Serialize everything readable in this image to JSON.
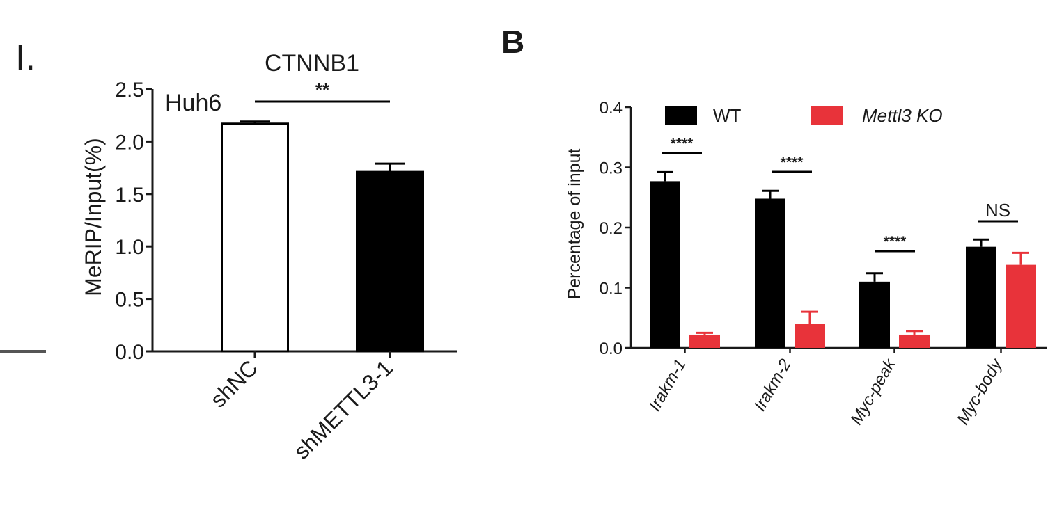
{
  "panel_left": {
    "panel_letter": "I.",
    "cell_line_label": "Huh6",
    "significance": "**",
    "error_bars": [
      0.02,
      0.08
    ]
  },
  "panel_right": {
    "panel_letter": "B",
    "significance_labels": [
      "****",
      "****",
      "****",
      "NS"
    ],
    "error_bars": {
      "WT": [
        0.015,
        0.013,
        0.014,
        0.012
      ],
      "Mettl3 KO": [
        0.003,
        0.02,
        0.006,
        0.02
      ]
    },
    "legend_colors": {
      "WT": "#000000",
      "Mettl3 KO": "#e8333a"
    }
  },
  "chart_data": [
    {
      "type": "bar",
      "title": "CTNNB1",
      "categories": [
        "shNC",
        "shMETTL3-1"
      ],
      "values": [
        2.17,
        1.71
      ],
      "xlabel": "",
      "ylabel": "MeRIP/Input(%)",
      "ylim": [
        0,
        2.5
      ],
      "yticks": [
        "0.0",
        "0.5",
        "1.0",
        "1.5",
        "2.0",
        "2.5"
      ],
      "fills": [
        "#ffffff",
        "#000000"
      ],
      "annotations": [
        "Huh6",
        "**"
      ],
      "grid": false
    },
    {
      "type": "bar",
      "title": "",
      "categories": [
        "Irakm-1",
        "Irakm-2",
        "Myc-peak",
        "Myc-body"
      ],
      "series": [
        {
          "name": "WT",
          "values": [
            0.277,
            0.248,
            0.11,
            0.168
          ],
          "color": "#000000"
        },
        {
          "name": "Mettl3 KO",
          "values": [
            0.022,
            0.04,
            0.022,
            0.138
          ],
          "color": "#e8333a"
        }
      ],
      "xlabel": "",
      "ylabel": "Percentage of input",
      "ylim": [
        0,
        0.4
      ],
      "yticks": [
        "0.0",
        "0.1",
        "0.2",
        "0.3",
        "0.4"
      ],
      "legend_position": "top",
      "annotations": [
        "****",
        "****",
        "****",
        "NS"
      ],
      "grid": false
    }
  ]
}
